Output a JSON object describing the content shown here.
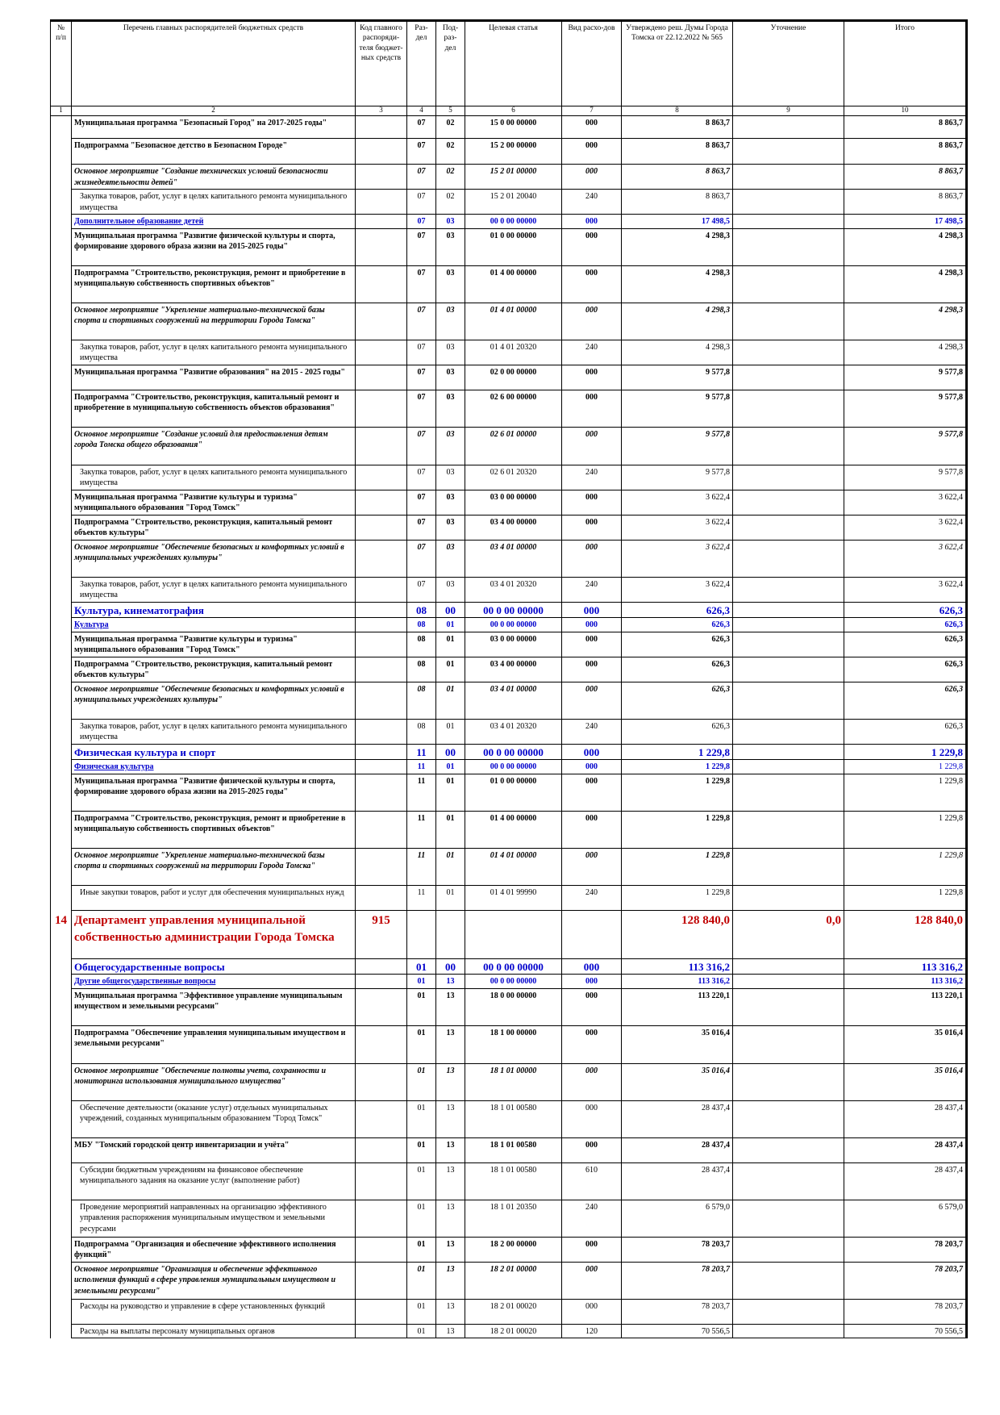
{
  "header": {
    "c1": "№ п/п",
    "c2": "Перечень главных распорядителей бюджетных средств",
    "c3": "Код главного распоряди-теля бюджет-ных средств",
    "c4": "Раз-дел",
    "c5": "Под-раз-дел",
    "c6": "Целевая статья",
    "c7": "Вид расхо-дов",
    "c8": "Утверждено реш. Думы Города Томска от 22.12.2022 № 565",
    "c9": "Уточнение",
    "c10": "Итого"
  },
  "colnums": [
    "1",
    "2",
    "3",
    "4",
    "5",
    "6",
    "7",
    "8",
    "9",
    "10"
  ],
  "rows": [
    {
      "s": "bold",
      "h": 28,
      "c": [
        "",
        "Муниципальная программа \"Безопасный Город\" на 2017-2025 годы\"",
        "",
        "07",
        "02",
        "15 0 00 00000",
        "000",
        "8 863,7",
        "",
        "8 863,7"
      ]
    },
    {
      "s": "bold",
      "h": 32,
      "c": [
        "",
        "Подпрограмма \"Безопасное детство в Безопасном Городе\"",
        "",
        "07",
        "02",
        "15 2 00 00000",
        "000",
        "8 863,7",
        "",
        "8 863,7"
      ]
    },
    {
      "s": "ital",
      "h": 31,
      "c": [
        "",
        "Основное мероприятие \"Создание технических условий безопасности жизнедеятельности детей\"",
        "",
        "07",
        "02",
        "15 2 01 00000",
        "000",
        "8 863,7",
        "",
        "8 863,7"
      ]
    },
    {
      "s": "norm",
      "h": 28,
      "c": [
        "",
        "Закупка товаров, работ, услуг в целях капитального ремонта муниципального имущества",
        "",
        "07",
        "02",
        "15 2 01 20040",
        "240",
        "8 863,7",
        "",
        "8 863,7"
      ]
    },
    {
      "s": "blue",
      "h": 16,
      "c": [
        "",
        "Дополнительное образование детей",
        "",
        "07",
        "03",
        "00 0 00 00000",
        "000",
        "17 498,5",
        "",
        "17 498,5"
      ]
    },
    {
      "s": "bold",
      "h": 46,
      "c": [
        "",
        "Муниципальная программа \"Развитие физической культуры и спорта, формирование здорового образа жизни на 2015-2025 годы\"",
        "",
        "07",
        "03",
        "01 0 00 00000",
        "000",
        "4 298,3",
        "",
        "4 298,3"
      ]
    },
    {
      "s": "bold",
      "h": 46,
      "c": [
        "",
        "Подпрограмма \"Строительство, реконструкция, ремонт и приобретение в муниципальную собственность спортивных объектов\"",
        "",
        "07",
        "03",
        "01 4 00 00000",
        "000",
        "4 298,3",
        "",
        "4 298,3"
      ]
    },
    {
      "s": "ital",
      "h": 46,
      "c": [
        "",
        "Основное мероприятие \"Укрепление материально-технической базы спорта и спортивных сооружений на территории Города Томска\"",
        "",
        "07",
        "03",
        "01 4 01 00000",
        "000",
        "4 298,3",
        "",
        "4 298,3"
      ]
    },
    {
      "s": "norm",
      "h": 31,
      "c": [
        "",
        "Закупка товаров, работ, услуг в целях капитального ремонта муниципального имущества",
        "",
        "07",
        "03",
        "01 4 01 20320",
        "240",
        "4 298,3",
        "",
        "4 298,3"
      ]
    },
    {
      "s": "bold",
      "h": 31,
      "c": [
        "",
        "Муниципальная программа \"Развитие образования\" на 2015 - 2025 годы\"",
        "",
        "07",
        "03",
        "02 0 00 00000",
        "000",
        "9 577,8",
        "",
        "9 577,8"
      ]
    },
    {
      "s": "bold",
      "h": 46,
      "c": [
        "",
        "Подпрограмма \"Строительство, реконструкция, капитальный ремонт и приобретение в муниципальную собственность объектов образования\"",
        "",
        "07",
        "03",
        "02 6 00 00000",
        "000",
        "9 577,8",
        "",
        "9 577,8"
      ]
    },
    {
      "s": "ital",
      "h": 47,
      "c": [
        "",
        "Основное мероприятие \"Создание условий для предоставления детям города Томска общего образования\"",
        "",
        "07",
        "03",
        "02 6 01 00000",
        "000",
        "9 577,8",
        "",
        "9 577,8"
      ]
    },
    {
      "s": "norm",
      "h": 31,
      "c": [
        "",
        "Закупка товаров, работ, услуг в целях капитального ремонта муниципального имущества",
        "",
        "07",
        "03",
        "02 6 01 20320",
        "240",
        "9 577,8",
        "",
        "9 577,8"
      ]
    },
    {
      "s": "bold",
      "h": 31,
      "c": [
        "",
        "Муниципальная программа \"Развитие культуры и туризма\" муниципального образования \"Город Томск\"",
        "",
        "07",
        "03",
        "03 0 00 00000",
        "000",
        "3 622,4",
        "",
        "3 622,4"
      ],
      "p": [
        7,
        9
      ]
    },
    {
      "s": "bold",
      "h": 31,
      "c": [
        "",
        "Подпрограмма \"Строительство, реконструкция, капитальный ремонт объектов культуры\"",
        "",
        "07",
        "03",
        "03 4 00 00000",
        "000",
        "3 622,4",
        "",
        "3 622,4"
      ],
      "p": [
        7,
        9
      ]
    },
    {
      "s": "ital",
      "h": 46,
      "c": [
        "",
        "Основное мероприятие \"Обеспечение безопасных и комфортных условий в муниципальных учреждениях культуры\"",
        "",
        "07",
        "03",
        "03 4 01 00000",
        "000",
        "3 622,4",
        "",
        "3 622,4"
      ],
      "p": [
        7,
        9
      ]
    },
    {
      "s": "norm",
      "h": 31,
      "c": [
        "",
        "Закупка товаров, работ, услуг в целях капитального ремонта муниципального имущества",
        "",
        "07",
        "03",
        "03 4 01 20320",
        "240",
        "3 622,4",
        "",
        "3 622,4"
      ]
    },
    {
      "s": "blue lg",
      "h": 17,
      "c": [
        "",
        "Культура, кинематография",
        "",
        "08",
        "00",
        "00 0 00 00000",
        "000",
        "626,3",
        "",
        "626,3"
      ]
    },
    {
      "s": "blue",
      "h": 16,
      "c": [
        "",
        "Культура",
        "",
        "08",
        "01",
        "00 0 00 00000",
        "000",
        "626,3",
        "",
        "626,3"
      ]
    },
    {
      "s": "bold",
      "h": 31,
      "c": [
        "",
        "Муниципальная программа \"Развитие культуры и туризма\" муниципального образования \"Город Томск\"",
        "",
        "08",
        "01",
        "03 0 00 00000",
        "000",
        "626,3",
        "",
        "626,3"
      ]
    },
    {
      "s": "bold",
      "h": 31,
      "c": [
        "",
        "Подпрограмма \"Строительство, реконструкция, капитальный ремонт объектов культуры\"",
        "",
        "08",
        "01",
        "03 4 00 00000",
        "000",
        "626,3",
        "",
        "626,3"
      ]
    },
    {
      "s": "ital",
      "h": 46,
      "c": [
        "",
        "Основное мероприятие \"Обеспечение безопасных и комфортных условий в муниципальных учреждениях культуры\"",
        "",
        "08",
        "01",
        "03 4 01 00000",
        "000",
        "626,3",
        "",
        "626,3"
      ]
    },
    {
      "s": "norm",
      "h": 31,
      "c": [
        "",
        "Закупка товаров, работ, услуг в целях капитального ремонта муниципального имущества",
        "",
        "08",
        "01",
        "03 4 01 20320",
        "240",
        "626,3",
        "",
        "626,3"
      ]
    },
    {
      "s": "blue lg",
      "h": 17,
      "c": [
        "",
        "Физическая культура и спорт",
        "",
        "11",
        "00",
        "00 0 00 00000",
        "000",
        "1 229,8",
        "",
        "1 229,8"
      ]
    },
    {
      "s": "blue sm",
      "h": 16,
      "c": [
        "",
        "Физическая культура",
        "",
        "11",
        "01",
        "00 0 00 00000",
        "000",
        "1 229,8",
        "",
        "1 229,8"
      ],
      "p": [
        9
      ]
    },
    {
      "s": "bold",
      "h": 46,
      "c": [
        "",
        "Муниципальная программа \"Развитие физической культуры и спорта, формирование здорового образа жизни на 2015-2025 годы\"",
        "",
        "11",
        "01",
        "01 0 00 00000",
        "000",
        "1 229,8",
        "",
        "1 229,8"
      ],
      "p": [
        9
      ]
    },
    {
      "s": "bold",
      "h": 46,
      "c": [
        "",
        "Подпрограмма \"Строительство, реконструкция, ремонт и приобретение в муниципальную собственность спортивных объектов\"",
        "",
        "11",
        "01",
        "01 4 00 00000",
        "000",
        "1 229,8",
        "",
        "1 229,8"
      ],
      "p": [
        9
      ]
    },
    {
      "s": "ital",
      "h": 46,
      "c": [
        "",
        "Основное мероприятие \"Укрепление материально-технической базы спорта и спортивных сооружений на территории Города Томска\"",
        "",
        "11",
        "01",
        "01 4 01 00000",
        "000",
        "1 229,8",
        "",
        "1 229,8"
      ],
      "p": [
        9
      ]
    },
    {
      "s": "norm",
      "h": 31,
      "c": [
        "",
        "Иные закупки товаров, работ и услуг для обеспечения муниципальных нужд",
        "",
        "11",
        "01",
        "01 4 01 99990",
        "240",
        "1 229,8",
        "",
        "1 229,8"
      ]
    },
    {
      "s": "dept",
      "h": 60,
      "c": [
        "14",
        "Департамент управления муниципальной собственностью администрации Города Томска",
        "915",
        "",
        "",
        "",
        "",
        "128 840,0",
        "0,0",
        "128 840,0"
      ]
    },
    {
      "s": "blue lg",
      "h": 17,
      "c": [
        "",
        "Общегосударственные вопросы",
        "",
        "01",
        "00",
        "00 0 00 00000",
        "000",
        "113 316,2",
        "",
        "113 316,2"
      ]
    },
    {
      "s": "blue",
      "h": 16,
      "c": [
        "",
        "Другие общегосударственные вопросы",
        "",
        "01",
        "13",
        "00 0 00 00000",
        "000",
        "113 316,2",
        "",
        "113 316,2"
      ]
    },
    {
      "s": "bold",
      "h": 46,
      "c": [
        "",
        "Муниципальная программа \"Эффективное управление муниципальным имуществом и земельными ресурсами\"",
        "",
        "01",
        "13",
        "18 0 00 00000",
        "000",
        "113 220,1",
        "",
        "113 220,1"
      ]
    },
    {
      "s": "bold",
      "h": 47,
      "c": [
        "",
        "Подпрограмма \"Обеспечение управления муниципальным имуществом и земельными ресурсами\"",
        "",
        "01",
        "13",
        "18 1 00 00000",
        "000",
        "35 016,4",
        "",
        "35 016,4"
      ]
    },
    {
      "s": "ital",
      "h": 46,
      "c": [
        "",
        "Основное мероприятие \"Обеспечение полноты учета, сохранности и мониторинга использования муниципального имущества\"",
        "",
        "01",
        "13",
        "18 1 01 00000",
        "000",
        "35 016,4",
        "",
        "35 016,4"
      ]
    },
    {
      "s": "norm",
      "h": 46,
      "c": [
        "",
        "Обеспечение деятельности (оказание услуг) отдельных муниципальных учреждений, созданных муниципальным образованием \"Город Томск\"",
        "",
        "01",
        "13",
        "18 1 01 00580",
        "000",
        "28 437,4",
        "",
        "28 437,4"
      ]
    },
    {
      "s": "bold",
      "h": 31,
      "c": [
        "",
        "МБУ \"Томский городской центр инвентаризации и учёта\"",
        "",
        "01",
        "13",
        "18 1 01 00580",
        "000",
        "28 437,4",
        "",
        "28 437,4"
      ]
    },
    {
      "s": "norm",
      "h": 46,
      "c": [
        "",
        "Субсидии бюджетным учреждениям на финансовое обеспечение муниципального задания на оказание услуг (выполнение работ)",
        "",
        "01",
        "13",
        "18 1 01 00580",
        "610",
        "28 437,4",
        "",
        "28 437,4"
      ]
    },
    {
      "s": "norm",
      "h": 46,
      "c": [
        "",
        "Проведение мероприятий направленных на организацию эффективного управления распоряжения муниципальным имуществом и земельными ресурсами",
        "",
        "01",
        "13",
        "18 1 01 20350",
        "240",
        "6 579,0",
        "",
        "6 579,0"
      ]
    },
    {
      "s": "bold",
      "h": 31,
      "c": [
        "",
        "Подпрограмма \"Организация и обеспечение эффективного исполнения функций\"",
        "",
        "01",
        "13",
        "18 2 00 00000",
        "000",
        "78 203,7",
        "",
        "78 203,7"
      ]
    },
    {
      "s": "ital",
      "h": 46,
      "c": [
        "",
        "Основное мероприятие \"Организация и обеспечение эффективного исполнения функций в сфере управления муниципальным имуществом и земельными ресурсами\"",
        "",
        "01",
        "13",
        "18 2 01 00000",
        "000",
        "78 203,7",
        "",
        "78 203,7"
      ]
    },
    {
      "s": "norm",
      "h": 31,
      "c": [
        "",
        "Расходы на руководство и управление в сфере установленных функций",
        "",
        "01",
        "13",
        "18 2 01 00020",
        "000",
        "78 203,7",
        "",
        "78 203,7"
      ]
    },
    {
      "s": "norm",
      "h": 16,
      "c": [
        "",
        "Расходы на выплаты персоналу муниципальных органов",
        "",
        "01",
        "13",
        "18 2 01 00020",
        "120",
        "70 556,5",
        "",
        "70 556,5"
      ]
    }
  ]
}
